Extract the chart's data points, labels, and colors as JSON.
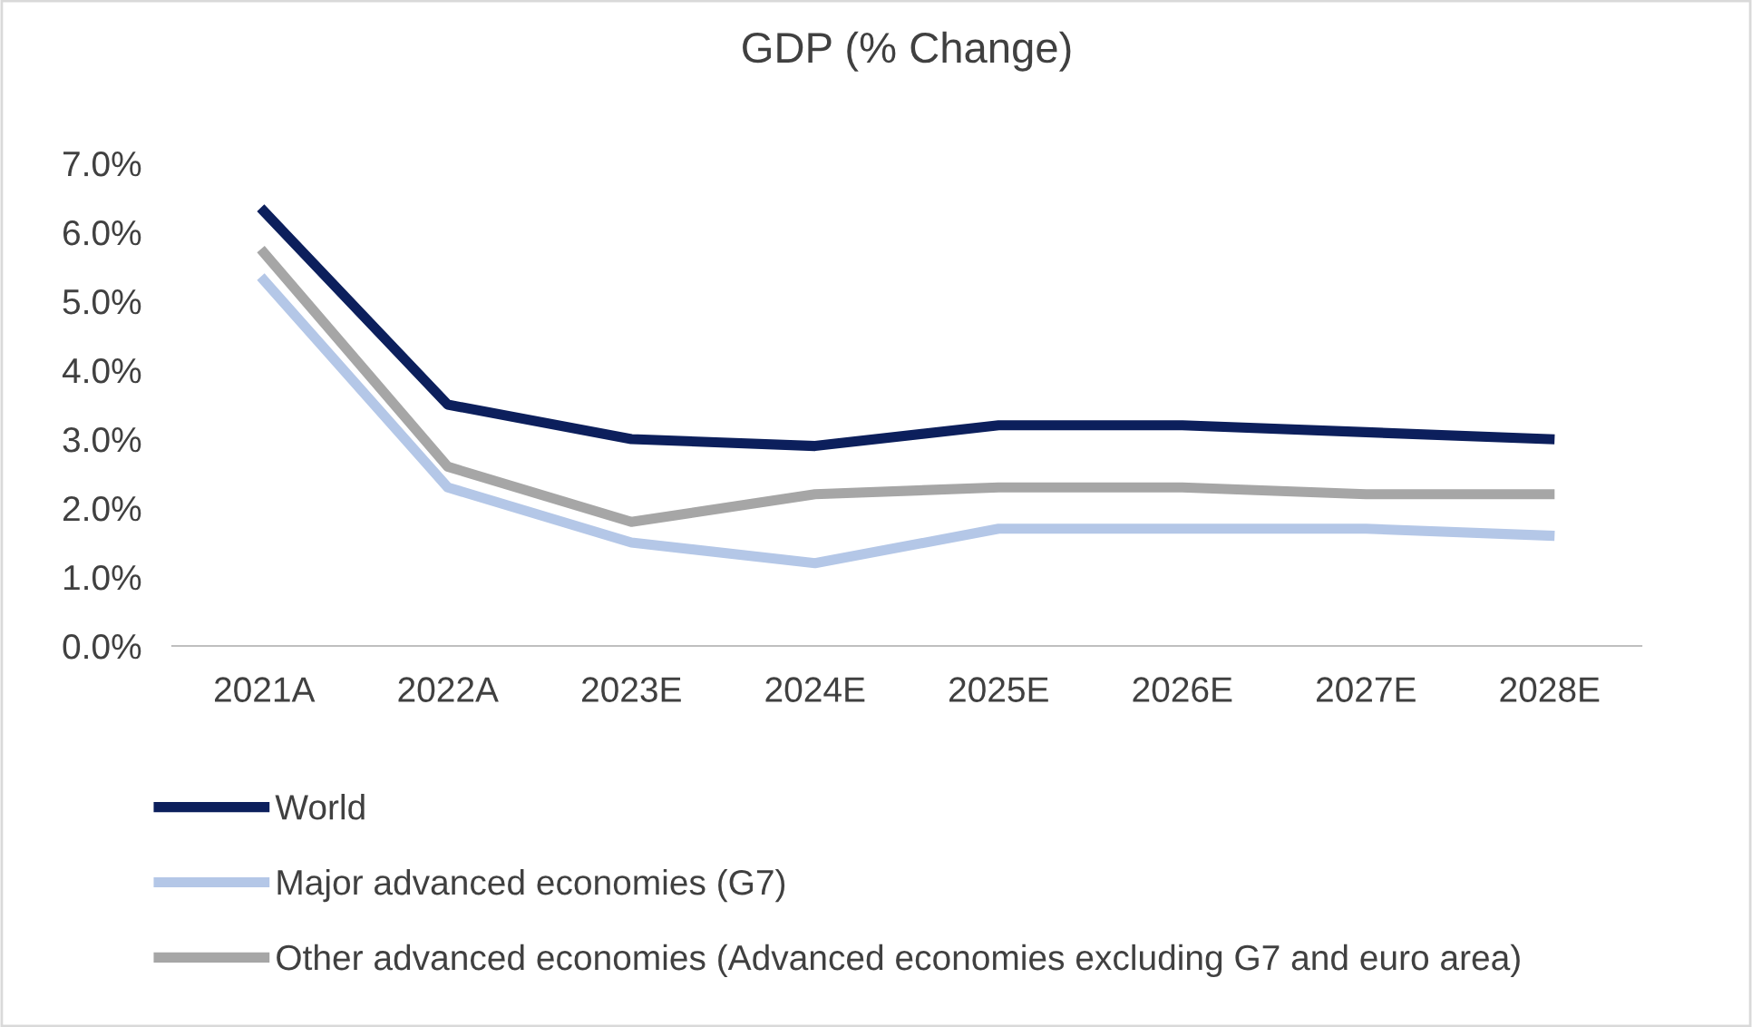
{
  "chart_data": {
    "type": "line",
    "title": "GDP (% Change)",
    "categories": [
      "2021A",
      "2022A",
      "2023E",
      "2024E",
      "2025E",
      "2026E",
      "2027E",
      "2028E"
    ],
    "series": [
      {
        "name": "World",
        "color": "#0c1f5c",
        "values": [
          6.3,
          3.5,
          3.0,
          2.9,
          3.2,
          3.2,
          3.1,
          3.0
        ]
      },
      {
        "name": "Major advanced economies (G7)",
        "color": "#b4c7e7",
        "values": [
          5.3,
          2.3,
          1.5,
          1.2,
          1.7,
          1.7,
          1.7,
          1.6
        ]
      },
      {
        "name": "Other advanced economies (Advanced economies excluding G7 and euro area)",
        "color": "#a6a6a6",
        "values": [
          5.7,
          2.6,
          1.8,
          2.2,
          2.3,
          2.3,
          2.2,
          2.2
        ]
      }
    ],
    "ylim": [
      0,
      7
    ],
    "yticks": [
      {
        "value": 0,
        "label": "0.0%"
      },
      {
        "value": 1,
        "label": "1.0%"
      },
      {
        "value": 2,
        "label": "2.0%"
      },
      {
        "value": 3,
        "label": "3.0%"
      },
      {
        "value": 4,
        "label": "4.0%"
      },
      {
        "value": 5,
        "label": "5.0%"
      },
      {
        "value": 6,
        "label": "6.0%"
      },
      {
        "value": 7,
        "label": "7.0%"
      }
    ],
    "grid": false,
    "legend": "bottom",
    "marker": "none",
    "line_style": "solid"
  }
}
